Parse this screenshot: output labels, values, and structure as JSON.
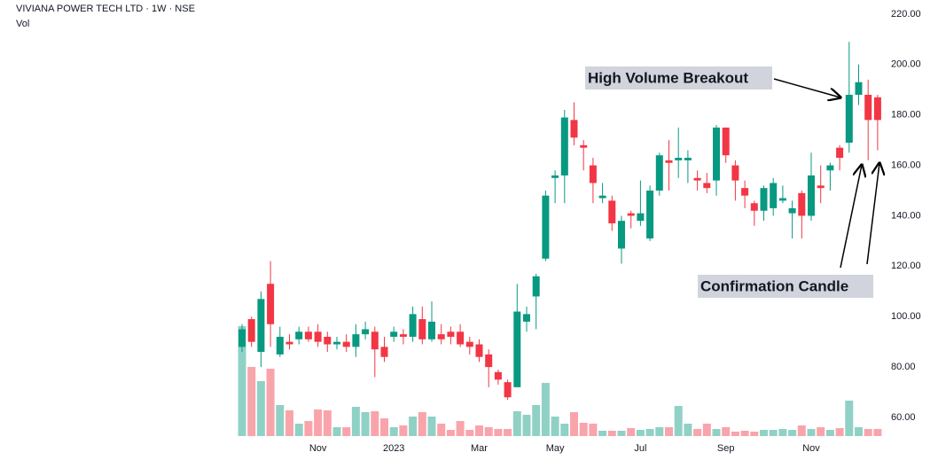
{
  "chart_data": {
    "type": "candlestick",
    "title": "VIVIANA POWER TECH LTD · 1W · NSE",
    "volume_label": "Vol",
    "up_color": "#089981",
    "down_color": "#f23645",
    "categories": [
      null,
      null,
      null,
      null,
      null,
      null,
      null,
      null,
      "Nov",
      null,
      null,
      null,
      null,
      null,
      null,
      null,
      "2023",
      null,
      null,
      null,
      null,
      null,
      null,
      null,
      null,
      "Mar",
      null,
      null,
      null,
      null,
      null,
      null,
      null,
      "May",
      null,
      null,
      null,
      null,
      null,
      null,
      null,
      null,
      "Jul",
      null,
      null,
      null,
      null,
      null,
      null,
      null,
      null,
      "Sep",
      null,
      null,
      null,
      null,
      null,
      null,
      null,
      null,
      "Nov",
      null,
      null,
      null,
      null,
      null,
      null,
      null
    ],
    "open": [
      88,
      99,
      86,
      113,
      85,
      90,
      91,
      94,
      94,
      92,
      89,
      90,
      88,
      93,
      94,
      88,
      92,
      93,
      92,
      99,
      91,
      93,
      94,
      94,
      90,
      89,
      85,
      78,
      74,
      72,
      98,
      108,
      123,
      155,
      156,
      178,
      168,
      160,
      147,
      146,
      127,
      141,
      138,
      131,
      150,
      162,
      162,
      162,
      155,
      153,
      154,
      175,
      160,
      151,
      145,
      142,
      143,
      146,
      141,
      149,
      140,
      152,
      158,
      167,
      169,
      188,
      188,
      187
    ],
    "high": [
      97,
      100,
      110,
      122,
      96,
      93,
      96,
      96,
      97,
      94,
      92,
      93,
      97,
      98,
      96,
      92,
      96,
      95,
      104,
      104,
      106,
      97,
      96,
      97,
      92,
      91,
      87,
      79,
      75,
      113,
      104,
      117,
      150,
      158,
      182,
      185,
      170,
      163,
      153,
      148,
      140,
      142,
      154,
      152,
      165,
      170,
      175,
      166,
      158,
      157,
      176,
      175,
      162,
      154,
      146,
      152,
      155,
      152,
      146,
      150,
      165,
      160,
      161,
      168,
      209,
      200,
      194,
      188
    ],
    "low": [
      86,
      88,
      80,
      88,
      84,
      87,
      89,
      90,
      88,
      86,
      87,
      86,
      84,
      91,
      76,
      82,
      90,
      89,
      90,
      89,
      90,
      89,
      89,
      88,
      85,
      82,
      72,
      73,
      67,
      72,
      94,
      95,
      122,
      145,
      145,
      168,
      158,
      145,
      145,
      134,
      121,
      135,
      136,
      130,
      148,
      150,
      155,
      153,
      150,
      149,
      148,
      161,
      146,
      143,
      136,
      138,
      140,
      145,
      131,
      131,
      138,
      145,
      150,
      158,
      165,
      184,
      162,
      166
    ],
    "close": [
      95,
      90,
      107,
      97,
      92,
      89,
      94,
      91,
      90,
      89,
      90,
      88,
      93,
      95,
      87,
      84,
      94,
      92,
      101,
      91,
      98,
      91,
      92,
      89,
      88,
      84,
      80,
      75,
      68,
      102,
      101,
      116,
      148,
      156,
      179,
      171,
      167,
      153,
      148,
      137,
      138,
      140,
      141,
      150,
      164,
      161,
      163,
      163,
      154,
      151,
      175,
      164,
      154,
      148,
      142,
      151,
      153,
      147,
      143,
      140,
      156,
      151,
      160,
      163,
      188,
      193,
      178,
      178
    ],
    "volume": [
      124,
      78,
      62,
      76,
      35,
      29,
      14,
      17,
      30,
      29,
      10,
      10,
      33,
      27,
      28,
      20,
      10,
      12,
      22,
      27,
      22,
      14,
      7,
      17,
      7,
      12,
      10,
      8,
      8,
      28,
      24,
      35,
      60,
      22,
      14,
      27,
      15,
      14,
      6,
      6,
      6,
      9,
      7,
      8,
      10,
      10,
      34,
      14,
      8,
      14,
      8,
      10,
      5,
      6,
      5,
      7,
      7,
      8,
      7,
      12,
      8,
      10,
      7,
      9,
      40,
      10,
      8,
      8
    ],
    "ylim": [
      49.8,
      225.6
    ],
    "yticks": [
      {
        "value": 60,
        "label": "60.00"
      },
      {
        "value": 80,
        "label": "80.00"
      },
      {
        "value": 100,
        "label": "100.00"
      },
      {
        "value": 120,
        "label": "120.00"
      },
      {
        "value": 140,
        "label": "140.00"
      },
      {
        "value": 160,
        "label": "160.00"
      },
      {
        "value": 180,
        "label": "180.00"
      },
      {
        "value": 200,
        "label": "200.00"
      },
      {
        "value": 220,
        "label": "220.00"
      }
    ],
    "annotations": [
      {
        "text": "High Volume Breakout"
      },
      {
        "text": "Confirmation Candle"
      }
    ]
  }
}
